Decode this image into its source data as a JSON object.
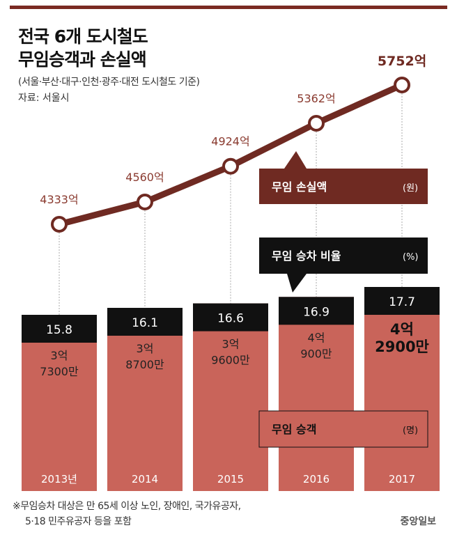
{
  "title_line1": "전국 6개 도시철도",
  "title_line2": "무임승객과 손실액",
  "subtitle": "(서울·부산·대구·인천·광주·대전 도시철도 기준)",
  "source": "자료: 서울시",
  "footnote_line1": "※무임승차 대상은 만 65세 이상 노인, 장애인, 국가유공자,",
  "footnote_line2": "5·18 민주유공자 등을 포함",
  "logo": "중앙일보",
  "colors": {
    "topbar": "#7a2a22",
    "line": "#6f2a22",
    "bar": "#c9645a",
    "black": "#111111",
    "loss_label": "#6f2a22"
  },
  "chart_data": {
    "type": "bar+line",
    "categories": [
      "2013년",
      "2014",
      "2015",
      "2016",
      "2017"
    ],
    "loss": {
      "label": "무임 손실액",
      "unit": "(원)",
      "values": [
        4333,
        4560,
        4924,
        5362,
        5752
      ],
      "value_labels": [
        "4333억",
        "4560억",
        "4924억",
        "5362억",
        "5752억"
      ]
    },
    "ratio": {
      "label": "무임 승차 비율",
      "unit": "(%)",
      "values": [
        15.8,
        16.1,
        16.6,
        16.9,
        17.7
      ],
      "value_labels": [
        "15.8",
        "16.1",
        "16.6",
        "16.9",
        "17.7"
      ]
    },
    "passengers": {
      "label": "무임 승객",
      "unit": "(명)",
      "values": [
        373000000,
        387000000,
        396000000,
        409000000,
        429000000
      ],
      "label_line1": [
        "3억",
        "3억",
        "3억",
        "4억",
        "4억"
      ],
      "label_line2": [
        "7300만",
        "8700만",
        "9600만",
        "900만",
        "2900만"
      ]
    }
  }
}
